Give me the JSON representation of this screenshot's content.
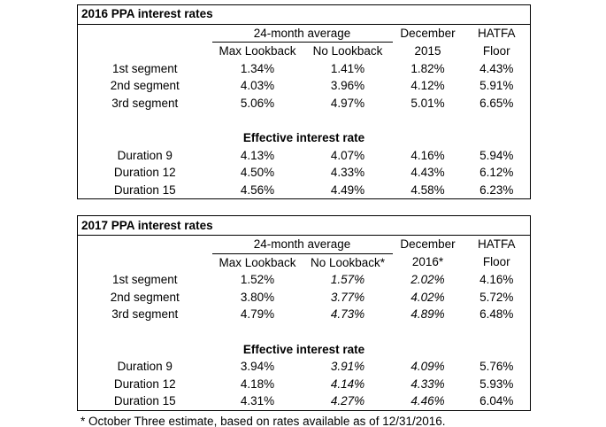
{
  "colors": {
    "background": "#ffffff",
    "text": "#000000",
    "border": "#000000"
  },
  "footnote": "* October Three estimate, based on rates available as of 12/31/2016.",
  "chart_data": [
    {
      "type": "table",
      "title": "2016 PPA interest rates",
      "column_group": {
        "label": "24-month average",
        "covers": [
          "Max Lookback",
          "No Lookback"
        ]
      },
      "column_header_line1": [
        "",
        "",
        "December",
        "HATFA"
      ],
      "column_header_line2": [
        "Max Lookback",
        "No Lookback",
        "2015",
        "Floor"
      ],
      "columns": [
        "Max Lookback",
        "No Lookback",
        "December 2015",
        "HATFA Floor"
      ],
      "sections": [
        {
          "label": "",
          "rows": [
            {
              "label": "1st segment",
              "values": [
                "1.34%",
                "1.41%",
                "1.82%",
                "4.43%"
              ]
            },
            {
              "label": "2nd segment",
              "values": [
                "4.03%",
                "3.96%",
                "4.12%",
                "5.91%"
              ]
            },
            {
              "label": "3rd segment",
              "values": [
                "5.06%",
                "4.97%",
                "5.01%",
                "6.65%"
              ]
            }
          ]
        },
        {
          "label": "Effective interest rate",
          "rows": [
            {
              "label": "Duration 9",
              "values": [
                "4.13%",
                "4.07%",
                "4.16%",
                "5.94%"
              ]
            },
            {
              "label": "Duration 12",
              "values": [
                "4.50%",
                "4.33%",
                "4.43%",
                "6.12%"
              ]
            },
            {
              "label": "Duration 15",
              "values": [
                "4.56%",
                "4.49%",
                "4.58%",
                "6.23%"
              ]
            }
          ]
        }
      ]
    },
    {
      "type": "table",
      "title": "2017 PPA interest rates",
      "column_group": {
        "label": "24-month average",
        "covers": [
          "Max Lookback",
          "No Lookback*"
        ]
      },
      "column_header_line1": [
        "",
        "",
        "December",
        "HATFA"
      ],
      "column_header_line2": [
        "Max Lookback",
        "No Lookback*",
        "2016*",
        "Floor"
      ],
      "columns": [
        "Max Lookback",
        "No Lookback*",
        "December 2016*",
        "HATFA Floor"
      ],
      "italic_value_columns": [
        1,
        2
      ],
      "sections": [
        {
          "label": "",
          "rows": [
            {
              "label": "1st segment",
              "values": [
                "1.52%",
                "1.57%",
                "2.02%",
                "4.16%"
              ]
            },
            {
              "label": "2nd segment",
              "values": [
                "3.80%",
                "3.77%",
                "4.02%",
                "5.72%"
              ]
            },
            {
              "label": "3rd segment",
              "values": [
                "4.79%",
                "4.73%",
                "4.89%",
                "6.48%"
              ]
            }
          ]
        },
        {
          "label": "Effective interest rate",
          "rows": [
            {
              "label": "Duration 9",
              "values": [
                "3.94%",
                "3.91%",
                "4.09%",
                "5.76%"
              ]
            },
            {
              "label": "Duration 12",
              "values": [
                "4.18%",
                "4.14%",
                "4.33%",
                "5.93%"
              ]
            },
            {
              "label": "Duration 15",
              "values": [
                "4.31%",
                "4.27%",
                "4.46%",
                "6.04%"
              ]
            }
          ]
        }
      ]
    }
  ]
}
